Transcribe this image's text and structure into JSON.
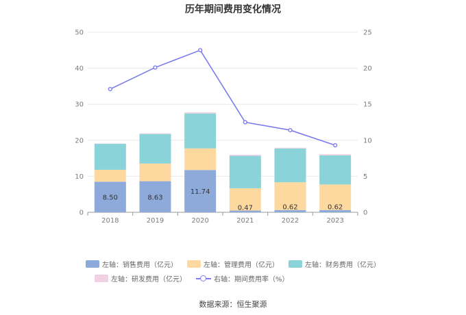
{
  "chart_data": {
    "type": "bar",
    "stacked": true,
    "title": "历年期间费用变化情况",
    "categories": [
      "2018",
      "2019",
      "2020",
      "2021",
      "2022",
      "2023"
    ],
    "y_left": {
      "min": 0,
      "max": 50,
      "ticks": [
        0,
        10,
        20,
        30,
        40,
        50
      ]
    },
    "y_right": {
      "min": 0,
      "max": 25,
      "ticks": [
        0,
        5,
        10,
        15,
        20,
        25
      ]
    },
    "series": [
      {
        "name": "左轴：销售费用（亿元）",
        "axis": "left",
        "type": "bar",
        "color": "#8eaadb",
        "values": [
          8.5,
          8.63,
          11.74,
          0.47,
          0.62,
          0.62
        ],
        "labels": [
          "8.50",
          "8.63",
          "11.74",
          "0.47",
          "0.62",
          "0.62"
        ]
      },
      {
        "name": "左轴：管理费用（亿元）",
        "axis": "left",
        "type": "bar",
        "color": "#fdd9a0",
        "values": [
          3.3,
          4.9,
          6.0,
          6.2,
          7.7,
          7.1
        ]
      },
      {
        "name": "左轴：财务费用（亿元）",
        "axis": "left",
        "type": "bar",
        "color": "#8ad3d8",
        "values": [
          7.2,
          8.2,
          9.7,
          9.0,
          9.4,
          8.1
        ]
      },
      {
        "name": "左轴：研发费用（亿元）",
        "axis": "left",
        "type": "bar",
        "color": "#f0d0e4",
        "values": [
          0.1,
          0.2,
          0.3,
          0.3,
          0.2,
          0.3
        ]
      },
      {
        "name": "右轴：期间费用率（%）",
        "axis": "right",
        "type": "line",
        "color": "#7b7bef",
        "values": [
          17.1,
          20.1,
          22.5,
          12.5,
          11.4,
          9.3
        ]
      }
    ]
  },
  "source": "数据来源：恒生聚源"
}
